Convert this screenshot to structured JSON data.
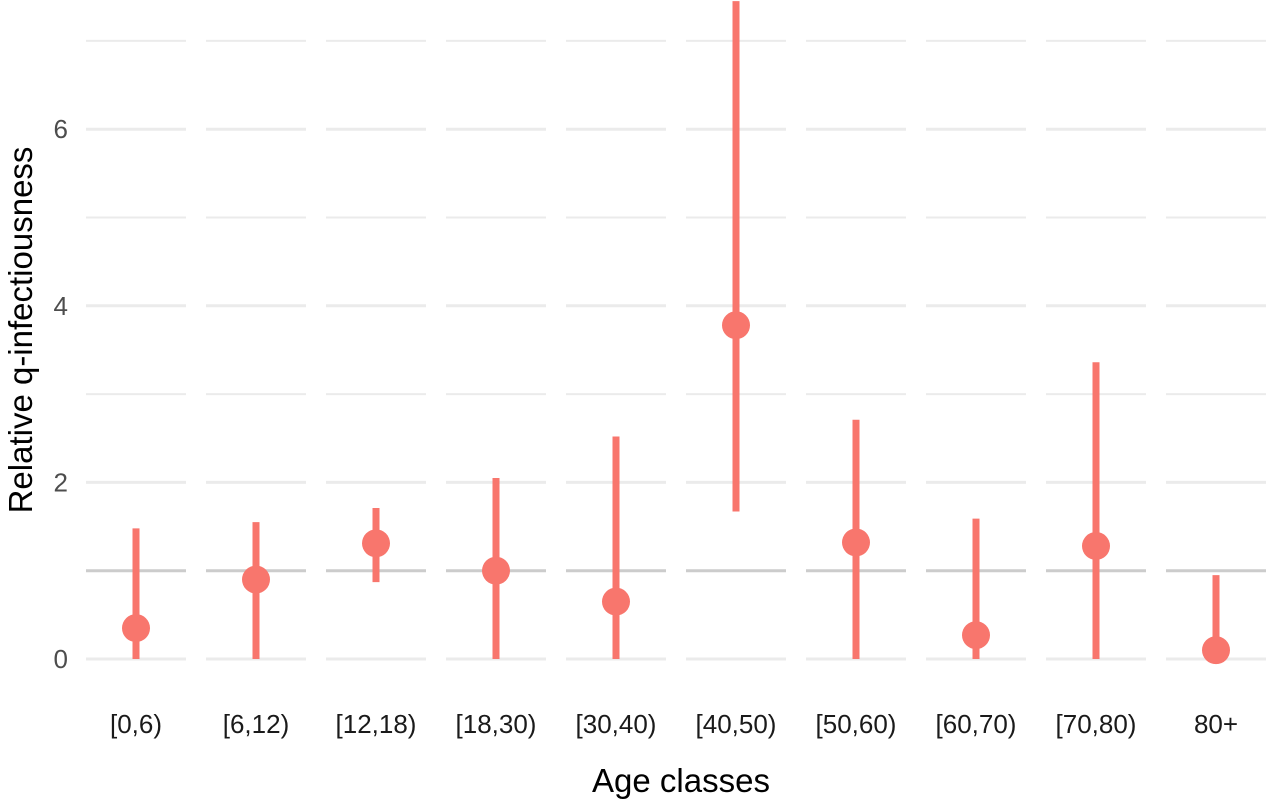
{
  "chart_data": {
    "type": "scatter",
    "title": "",
    "xlabel": "Age classes",
    "ylabel": "Relative q-infectiousness",
    "categories": [
      "[0,6)",
      "[6,12)",
      "[12,18)",
      "[18,30)",
      "[30,40)",
      "[40,50)",
      "[50,60)",
      "[60,70)",
      "[70,80)",
      "80+"
    ],
    "values": [
      0.35,
      0.9,
      1.31,
      1.0,
      0.65,
      3.78,
      1.32,
      0.27,
      1.28,
      0.1
    ],
    "lower": [
      0.0,
      0.0,
      0.87,
      0.0,
      0.0,
      1.67,
      0.0,
      0.0,
      0.0,
      0.0
    ],
    "upper": [
      1.48,
      1.55,
      1.71,
      2.05,
      2.52,
      7.45,
      2.71,
      1.59,
      3.36,
      0.95
    ],
    "reference_line": 1,
    "yticks": [
      0,
      2,
      4,
      6
    ],
    "ylim": [
      0,
      7.45
    ],
    "grid": true,
    "legend": "none",
    "colors": {
      "points": "#F8766D",
      "grid": "#EBEBEB",
      "reference": "#CCCCCC"
    }
  }
}
